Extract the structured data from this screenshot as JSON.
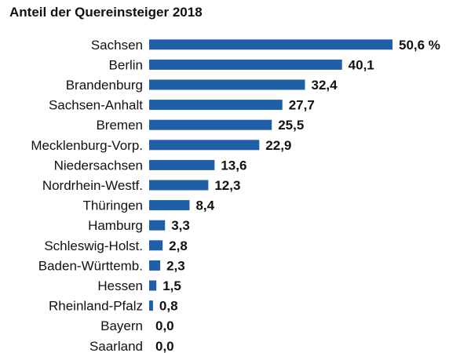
{
  "chart_data": {
    "type": "bar",
    "orientation": "horizontal",
    "title": "Anteil der Quereinsteiger 2018",
    "categories": [
      "Sachsen",
      "Berlin",
      "Brandenburg",
      "Sachsen-Anhalt",
      "Bremen",
      "Mecklenburg-Vorp.",
      "Niedersachsen",
      "Nordrhein-Westf.",
      "Thüringen",
      "Hamburg",
      "Schleswig-Holst.",
      "Baden-Württemb.",
      "Hessen",
      "Rheinland-Pfalz",
      "Bayern",
      "Saarland"
    ],
    "values": [
      50.6,
      40.1,
      32.4,
      27.7,
      25.5,
      22.9,
      13.6,
      12.3,
      8.4,
      3.3,
      2.8,
      2.3,
      1.5,
      0.8,
      0.0,
      0.0
    ],
    "value_labels": [
      "50,6 %",
      "40,1",
      "32,4",
      "27,7",
      "25,5",
      "22,9",
      "13,6",
      "12,3",
      "8,4",
      "3,3",
      "2,8",
      "2,3",
      "1,5",
      "0,8",
      "0,0",
      "0,0"
    ],
    "xlim": [
      0,
      50.6
    ],
    "bar_color": "#1f5fa8",
    "grid": false,
    "legend": "none"
  }
}
